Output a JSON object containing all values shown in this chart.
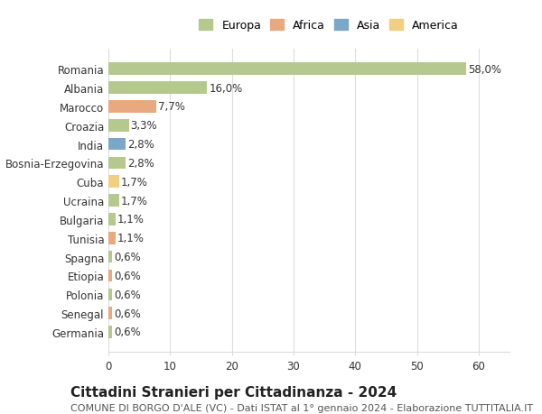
{
  "countries": [
    "Romania",
    "Albania",
    "Marocco",
    "Croazia",
    "India",
    "Bosnia-Erzegovina",
    "Cuba",
    "Ucraina",
    "Bulgaria",
    "Tunisia",
    "Spagna",
    "Etiopia",
    "Polonia",
    "Senegal",
    "Germania"
  ],
  "values": [
    58.0,
    16.0,
    7.7,
    3.3,
    2.8,
    2.8,
    1.7,
    1.7,
    1.1,
    1.1,
    0.6,
    0.6,
    0.6,
    0.6,
    0.6
  ],
  "labels": [
    "58,0%",
    "16,0%",
    "7,7%",
    "3,3%",
    "2,8%",
    "2,8%",
    "1,7%",
    "1,7%",
    "1,1%",
    "1,1%",
    "0,6%",
    "0,6%",
    "0,6%",
    "0,6%",
    "0,6%"
  ],
  "colors": [
    "#b5c98e",
    "#b5c98e",
    "#e8a97e",
    "#b5c98e",
    "#7ba7c9",
    "#b5c98e",
    "#f0d080",
    "#b5c98e",
    "#b5c98e",
    "#e8a97e",
    "#b5c98e",
    "#e8a97e",
    "#b5c98e",
    "#e8a97e",
    "#b5c98e"
  ],
  "legend_labels": [
    "Europa",
    "Africa",
    "Asia",
    "America"
  ],
  "legend_colors": [
    "#b5c98e",
    "#e8a97e",
    "#7ba7c9",
    "#f0d080"
  ],
  "xlim": [
    0,
    65
  ],
  "xticks": [
    0,
    10,
    20,
    30,
    40,
    50,
    60
  ],
  "title": "Cittadini Stranieri per Cittadinanza - 2024",
  "subtitle": "COMUNE DI BORGO D'ALE (VC) - Dati ISTAT al 1° gennaio 2024 - Elaborazione TUTTITALIA.IT",
  "title_fontsize": 11,
  "subtitle_fontsize": 8,
  "background_color": "#ffffff",
  "grid_color": "#dddddd",
  "bar_height": 0.65,
  "label_fontsize": 8.5,
  "tick_fontsize": 8.5
}
